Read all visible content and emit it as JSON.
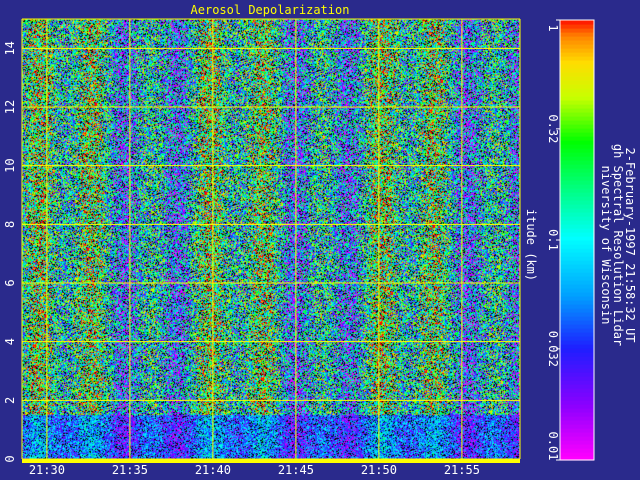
{
  "chart_data": {
    "type": "heatmap",
    "title": "Aerosol Depolarization",
    "xlabel": "",
    "ylabel": "itude (km)",
    "x_ticks": [
      "21:30",
      "21:35",
      "21:40",
      "21:45",
      "21:50",
      "21:55"
    ],
    "y_ticks": [
      "0",
      "2",
      "4",
      "6",
      "8",
      "10",
      "12",
      "14"
    ],
    "ylim": [
      0,
      15
    ],
    "xlim_minutes": [
      28.5,
      58.5
    ],
    "colorbar": {
      "scale": "log",
      "range": [
        0.01,
        1
      ],
      "ticks": [
        "0.01",
        "0.032",
        "0.1",
        "0.32",
        "1"
      ]
    },
    "grid": true
  },
  "side_text": {
    "line1": "niversity of Wisconsin",
    "line2": "gh Spectral Resolution Lidar",
    "line3": "2-February-1997 21:58:32 UT"
  },
  "colors": {
    "background": "#2a2a8c",
    "grid": "#ffff00",
    "axis": "#ffff00",
    "title": "#ffff00",
    "text": "#ffffff"
  }
}
